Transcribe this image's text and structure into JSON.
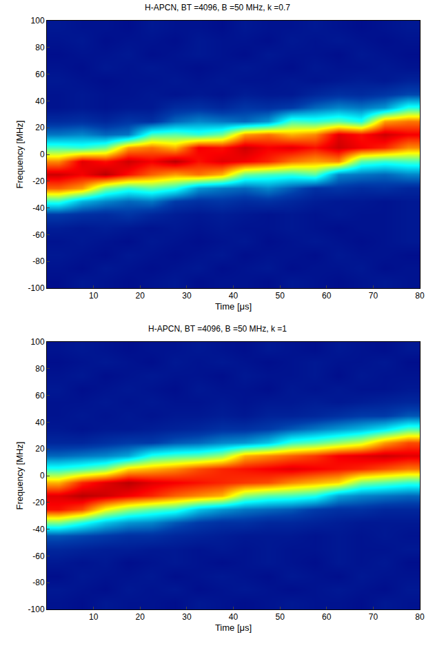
{
  "chart_data": [
    {
      "type": "heatmap",
      "title": "H-APCN, BT =4096, B =50 MHz, k =0.7",
      "x_label": "Time [μs]",
      "y_label": "Frequency [MHz]",
      "x": [
        2.5,
        7.5,
        12.5,
        17.5,
        22.5,
        27.5,
        32.5,
        37.5,
        42.5,
        47.5,
        52.5,
        57.5,
        62.5,
        67.5,
        72.5,
        77.5
      ],
      "y": [
        -95,
        -85,
        -75,
        -65,
        -55,
        -45,
        -35,
        -25,
        -15,
        -5,
        5,
        15,
        25,
        35,
        45,
        55,
        65,
        75,
        85,
        95
      ],
      "z": [
        [
          0.03,
          0.05,
          0.04,
          0.03,
          0.04,
          0.05,
          0.03,
          0.04,
          0.04,
          0.03,
          0.05,
          0.04,
          0.03,
          0.04,
          0.05,
          0.04
        ],
        [
          0.04,
          0.03,
          0.05,
          0.04,
          0.03,
          0.04,
          0.05,
          0.03,
          0.04,
          0.05,
          0.03,
          0.04,
          0.04,
          0.05,
          0.03,
          0.04
        ],
        [
          0.05,
          0.04,
          0.03,
          0.05,
          0.04,
          0.03,
          0.04,
          0.05,
          0.03,
          0.04,
          0.04,
          0.03,
          0.05,
          0.04,
          0.04,
          0.03
        ],
        [
          0.04,
          0.05,
          0.04,
          0.03,
          0.05,
          0.04,
          0.03,
          0.04,
          0.05,
          0.03,
          0.04,
          0.05,
          0.04,
          0.03,
          0.04,
          0.05
        ],
        [
          0.06,
          0.05,
          0.06,
          0.05,
          0.04,
          0.05,
          0.04,
          0.05,
          0.04,
          0.04,
          0.05,
          0.04,
          0.03,
          0.04,
          0.04,
          0.05
        ],
        [
          0.12,
          0.1,
          0.09,
          0.11,
          0.08,
          0.06,
          0.05,
          0.06,
          0.05,
          0.04,
          0.05,
          0.04,
          0.05,
          0.04,
          0.04,
          0.05
        ],
        [
          0.42,
          0.28,
          0.22,
          0.18,
          0.2,
          0.12,
          0.1,
          0.11,
          0.09,
          0.1,
          0.08,
          0.06,
          0.05,
          0.05,
          0.04,
          0.05
        ],
        [
          0.78,
          0.72,
          0.5,
          0.42,
          0.46,
          0.4,
          0.24,
          0.2,
          0.18,
          0.22,
          0.16,
          0.1,
          0.11,
          0.09,
          0.1,
          0.08
        ],
        [
          0.92,
          0.88,
          0.94,
          0.86,
          0.78,
          0.72,
          0.76,
          0.7,
          0.48,
          0.44,
          0.42,
          0.46,
          0.22,
          0.2,
          0.18,
          0.22
        ],
        [
          0.74,
          0.9,
          0.86,
          0.92,
          0.88,
          0.94,
          0.86,
          0.9,
          0.88,
          0.84,
          0.76,
          0.72,
          0.74,
          0.46,
          0.42,
          0.44
        ],
        [
          0.44,
          0.42,
          0.48,
          0.72,
          0.76,
          0.7,
          0.88,
          0.86,
          0.92,
          0.88,
          0.9,
          0.86,
          0.92,
          0.88,
          0.84,
          0.74
        ],
        [
          0.2,
          0.22,
          0.18,
          0.2,
          0.44,
          0.46,
          0.42,
          0.48,
          0.72,
          0.76,
          0.7,
          0.74,
          0.9,
          0.86,
          0.92,
          0.88
        ],
        [
          0.09,
          0.1,
          0.08,
          0.11,
          0.1,
          0.18,
          0.22,
          0.2,
          0.18,
          0.24,
          0.44,
          0.42,
          0.46,
          0.4,
          0.72,
          0.76
        ],
        [
          0.04,
          0.05,
          0.04,
          0.05,
          0.05,
          0.09,
          0.1,
          0.08,
          0.11,
          0.1,
          0.12,
          0.18,
          0.22,
          0.2,
          0.24,
          0.4
        ],
        [
          0.04,
          0.05,
          0.04,
          0.04,
          0.05,
          0.04,
          0.05,
          0.04,
          0.06,
          0.05,
          0.05,
          0.08,
          0.1,
          0.09,
          0.11,
          0.14
        ],
        [
          0.05,
          0.04,
          0.03,
          0.04,
          0.04,
          0.05,
          0.04,
          0.05,
          0.04,
          0.04,
          0.05,
          0.04,
          0.05,
          0.06,
          0.05,
          0.07
        ],
        [
          0.04,
          0.03,
          0.05,
          0.04,
          0.05,
          0.04,
          0.03,
          0.04,
          0.05,
          0.04,
          0.03,
          0.05,
          0.04,
          0.04,
          0.05,
          0.04
        ],
        [
          0.03,
          0.04,
          0.04,
          0.05,
          0.03,
          0.04,
          0.05,
          0.04,
          0.03,
          0.05,
          0.04,
          0.04,
          0.03,
          0.05,
          0.04,
          0.03
        ],
        [
          0.04,
          0.05,
          0.03,
          0.04,
          0.04,
          0.03,
          0.05,
          0.04,
          0.04,
          0.03,
          0.05,
          0.04,
          0.05,
          0.04,
          0.03,
          0.04
        ],
        [
          0.05,
          0.04,
          0.04,
          0.03,
          0.05,
          0.04,
          0.04,
          0.03,
          0.05,
          0.04,
          0.04,
          0.05,
          0.04,
          0.03,
          0.04,
          0.05
        ]
      ],
      "zlim": [
        0,
        1
      ],
      "xlim": [
        0,
        80
      ],
      "ylim": [
        -100,
        100
      ],
      "xticks": [
        10,
        20,
        30,
        40,
        50,
        60,
        70,
        80
      ],
      "yticks": [
        -100,
        -80,
        -60,
        -40,
        -20,
        0,
        20,
        40,
        60,
        80,
        100
      ]
    },
    {
      "type": "heatmap",
      "title": "H-APCN, BT =4096, B =50 MHz, k =1",
      "x_label": "Time [μs]",
      "y_label": "Frequency [MHz]",
      "x": [
        2.5,
        7.5,
        12.5,
        17.5,
        22.5,
        27.5,
        32.5,
        37.5,
        42.5,
        47.5,
        52.5,
        57.5,
        62.5,
        67.5,
        72.5,
        77.5
      ],
      "y": [
        -95,
        -85,
        -75,
        -65,
        -55,
        -45,
        -35,
        -25,
        -15,
        -5,
        5,
        15,
        25,
        35,
        45,
        55,
        65,
        75,
        85,
        95
      ],
      "z": [
        [
          0.04,
          0.03,
          0.05,
          0.04,
          0.04,
          0.03,
          0.05,
          0.04,
          0.03,
          0.04,
          0.05,
          0.04,
          0.04,
          0.03,
          0.05,
          0.04
        ],
        [
          0.05,
          0.04,
          0.03,
          0.05,
          0.04,
          0.05,
          0.03,
          0.04,
          0.05,
          0.04,
          0.03,
          0.04,
          0.05,
          0.04,
          0.03,
          0.05
        ],
        [
          0.03,
          0.05,
          0.04,
          0.04,
          0.05,
          0.03,
          0.04,
          0.05,
          0.04,
          0.03,
          0.05,
          0.04,
          0.03,
          0.05,
          0.04,
          0.04
        ],
        [
          0.05,
          0.04,
          0.05,
          0.03,
          0.04,
          0.05,
          0.04,
          0.03,
          0.04,
          0.05,
          0.04,
          0.03,
          0.05,
          0.04,
          0.05,
          0.03
        ],
        [
          0.08,
          0.07,
          0.06,
          0.06,
          0.05,
          0.05,
          0.04,
          0.05,
          0.04,
          0.05,
          0.04,
          0.04,
          0.05,
          0.04,
          0.04,
          0.05
        ],
        [
          0.16,
          0.14,
          0.12,
          0.1,
          0.1,
          0.08,
          0.07,
          0.06,
          0.05,
          0.05,
          0.05,
          0.04,
          0.05,
          0.04,
          0.05,
          0.04
        ],
        [
          0.5,
          0.4,
          0.3,
          0.24,
          0.22,
          0.16,
          0.12,
          0.1,
          0.1,
          0.08,
          0.08,
          0.07,
          0.06,
          0.05,
          0.05,
          0.05
        ],
        [
          0.86,
          0.8,
          0.62,
          0.52,
          0.46,
          0.42,
          0.3,
          0.24,
          0.2,
          0.18,
          0.16,
          0.12,
          0.1,
          0.1,
          0.08,
          0.08
        ],
        [
          0.9,
          0.94,
          0.92,
          0.88,
          0.84,
          0.78,
          0.74,
          0.7,
          0.52,
          0.46,
          0.44,
          0.4,
          0.26,
          0.22,
          0.2,
          0.18
        ],
        [
          0.7,
          0.84,
          0.9,
          0.94,
          0.9,
          0.88,
          0.86,
          0.84,
          0.82,
          0.8,
          0.74,
          0.7,
          0.66,
          0.5,
          0.46,
          0.42
        ],
        [
          0.4,
          0.44,
          0.5,
          0.66,
          0.7,
          0.74,
          0.8,
          0.84,
          0.86,
          0.88,
          0.9,
          0.88,
          0.86,
          0.84,
          0.8,
          0.76
        ],
        [
          0.18,
          0.2,
          0.22,
          0.26,
          0.4,
          0.44,
          0.46,
          0.52,
          0.7,
          0.74,
          0.78,
          0.82,
          0.88,
          0.9,
          0.92,
          0.9
        ],
        [
          0.08,
          0.08,
          0.1,
          0.12,
          0.12,
          0.16,
          0.18,
          0.22,
          0.24,
          0.3,
          0.42,
          0.46,
          0.52,
          0.58,
          0.72,
          0.8
        ],
        [
          0.05,
          0.04,
          0.05,
          0.05,
          0.06,
          0.07,
          0.08,
          0.1,
          0.1,
          0.12,
          0.16,
          0.2,
          0.24,
          0.28,
          0.34,
          0.44
        ],
        [
          0.04,
          0.05,
          0.04,
          0.05,
          0.04,
          0.05,
          0.05,
          0.06,
          0.05,
          0.07,
          0.07,
          0.08,
          0.1,
          0.12,
          0.12,
          0.16
        ],
        [
          0.04,
          0.04,
          0.05,
          0.04,
          0.05,
          0.04,
          0.04,
          0.05,
          0.04,
          0.05,
          0.05,
          0.06,
          0.05,
          0.06,
          0.07,
          0.08
        ],
        [
          0.05,
          0.03,
          0.04,
          0.05,
          0.04,
          0.03,
          0.05,
          0.04,
          0.04,
          0.03,
          0.05,
          0.04,
          0.05,
          0.04,
          0.04,
          0.05
        ],
        [
          0.04,
          0.05,
          0.03,
          0.04,
          0.05,
          0.04,
          0.04,
          0.03,
          0.05,
          0.04,
          0.04,
          0.05,
          0.03,
          0.05,
          0.04,
          0.04
        ],
        [
          0.03,
          0.04,
          0.05,
          0.04,
          0.03,
          0.05,
          0.04,
          0.05,
          0.04,
          0.03,
          0.04,
          0.05,
          0.04,
          0.04,
          0.05,
          0.03
        ],
        [
          0.04,
          0.05,
          0.04,
          0.03,
          0.04,
          0.04,
          0.05,
          0.04,
          0.03,
          0.05,
          0.04,
          0.03,
          0.05,
          0.04,
          0.03,
          0.05
        ]
      ],
      "zlim": [
        0,
        1
      ],
      "xlim": [
        0,
        80
      ],
      "ylim": [
        -100,
        100
      ],
      "xticks": [
        10,
        20,
        30,
        40,
        50,
        60,
        70,
        80
      ],
      "yticks": [
        -100,
        -80,
        -60,
        -40,
        -20,
        0,
        20,
        40,
        60,
        80,
        100
      ]
    }
  ]
}
